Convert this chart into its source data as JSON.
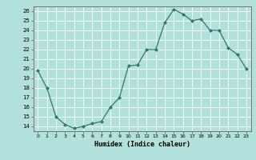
{
  "x": [
    0,
    1,
    2,
    3,
    4,
    5,
    6,
    7,
    8,
    9,
    10,
    11,
    12,
    13,
    14,
    15,
    16,
    17,
    18,
    19,
    20,
    21,
    22,
    23
  ],
  "y": [
    19.8,
    18.0,
    15.0,
    14.2,
    13.8,
    14.0,
    14.3,
    14.5,
    16.0,
    17.0,
    20.3,
    20.4,
    22.0,
    22.0,
    24.8,
    26.2,
    25.7,
    25.0,
    25.2,
    24.0,
    24.0,
    22.2,
    21.5,
    20.0
  ],
  "line_color": "#2d7a6a",
  "marker_color": "#2d7a6a",
  "bg_color": "#b2e0dc",
  "grid_color": "#ffffff",
  "xlabel": "Humidex (Indice chaleur)",
  "xlim": [
    -0.5,
    23.5
  ],
  "ylim": [
    13.5,
    26.5
  ],
  "yticks": [
    14,
    15,
    16,
    17,
    18,
    19,
    20,
    21,
    22,
    23,
    24,
    25,
    26
  ],
  "xticks": [
    0,
    1,
    2,
    3,
    4,
    5,
    6,
    7,
    8,
    9,
    10,
    11,
    12,
    13,
    14,
    15,
    16,
    17,
    18,
    19,
    20,
    21,
    22,
    23
  ]
}
